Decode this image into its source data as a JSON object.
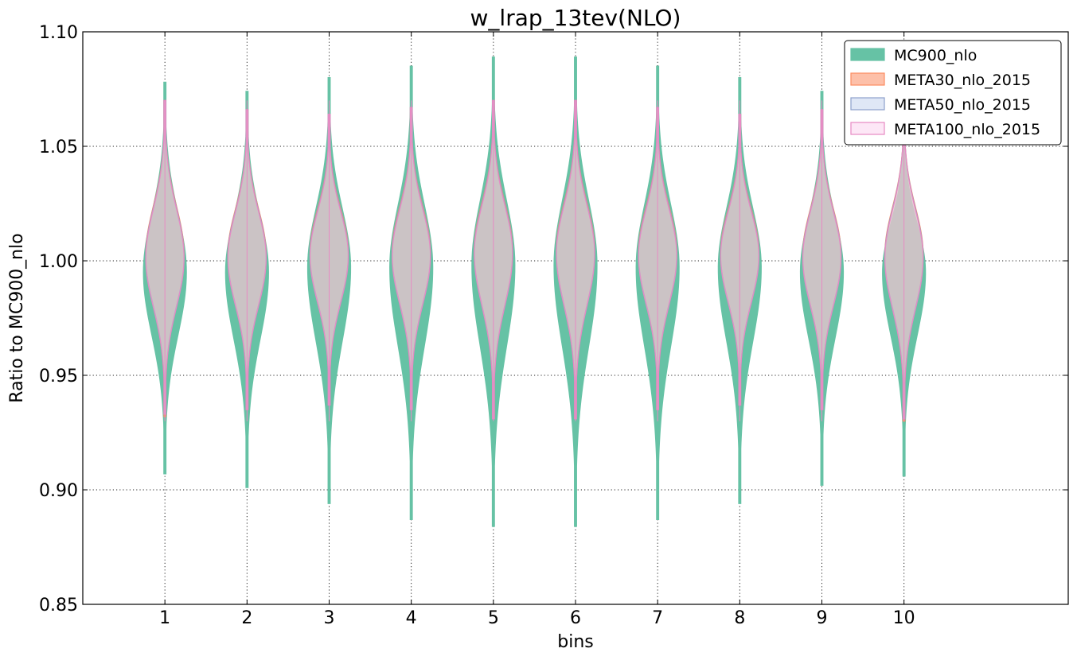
{
  "chart_data": {
    "type": "violin",
    "title": "w_lrap_13tev(NLO)",
    "xlabel": "bins",
    "ylabel": "Ratio to MC900_nlo",
    "categories": [
      "1",
      "2",
      "3",
      "4",
      "5",
      "6",
      "7",
      "8",
      "9",
      "10"
    ],
    "x": [
      1,
      2,
      3,
      4,
      5,
      6,
      7,
      8,
      9,
      10
    ],
    "xlim": [
      0,
      12
    ],
    "ylim": [
      0.85,
      1.1
    ],
    "yticks": [
      "0.85",
      "0.90",
      "0.95",
      "1.00",
      "1.05",
      "1.10"
    ],
    "grid": true,
    "legend_position": "top-right",
    "series": [
      {
        "name": "MC900_nlo",
        "fill": "#66c2a5",
        "edge": "#66c2a5",
        "fill_opacity": 1.0,
        "center": [
          0.995,
          0.995,
          0.997,
          0.997,
          0.998,
          0.998,
          0.997,
          0.997,
          0.995,
          0.995
        ],
        "ymin": [
          0.907,
          0.901,
          0.894,
          0.887,
          0.884,
          0.884,
          0.887,
          0.894,
          0.902,
          0.906
        ],
        "ymax": [
          1.078,
          1.074,
          1.08,
          1.085,
          1.089,
          1.089,
          1.085,
          1.08,
          1.074,
          1.064
        ]
      },
      {
        "name": "META30_nlo_2015",
        "fill": "#fc8d62",
        "edge": "#fc8d62",
        "fill_opacity": 0.45,
        "center": [
          1.003,
          1.003,
          1.004,
          1.004,
          1.005,
          1.005,
          1.004,
          1.004,
          1.003,
          1.003
        ],
        "ymin": [
          0.932,
          0.935,
          0.937,
          0.935,
          0.931,
          0.931,
          0.935,
          0.937,
          0.935,
          0.93
        ],
        "ymax": [
          1.07,
          1.066,
          1.064,
          1.067,
          1.07,
          1.07,
          1.067,
          1.064,
          1.066,
          1.068
        ]
      },
      {
        "name": "META50_nlo_2015",
        "fill": "#c5d3ee",
        "edge": "#8da0cb",
        "fill_opacity": 0.45,
        "center": [
          1.002,
          1.002,
          1.003,
          1.003,
          1.004,
          1.004,
          1.003,
          1.003,
          1.002,
          1.002
        ],
        "ymin": [
          0.933,
          0.935,
          0.937,
          0.935,
          0.931,
          0.931,
          0.935,
          0.937,
          0.935,
          0.931
        ],
        "ymax": [
          1.07,
          1.066,
          1.064,
          1.067,
          1.07,
          1.07,
          1.067,
          1.064,
          1.066,
          1.068
        ]
      },
      {
        "name": "META100_nlo_2015",
        "fill": "#fbd4ef",
        "edge": "#e78ac3",
        "fill_opacity": 0.3,
        "center": [
          1.001,
          1.001,
          1.002,
          1.002,
          1.003,
          1.003,
          1.002,
          1.002,
          1.001,
          1.001
        ],
        "ymin": [
          0.933,
          0.935,
          0.937,
          0.935,
          0.931,
          0.931,
          0.935,
          0.937,
          0.935,
          0.931
        ],
        "ymax": [
          1.07,
          1.066,
          1.064,
          1.067,
          1.07,
          1.07,
          1.067,
          1.064,
          1.066,
          1.068
        ]
      }
    ]
  }
}
